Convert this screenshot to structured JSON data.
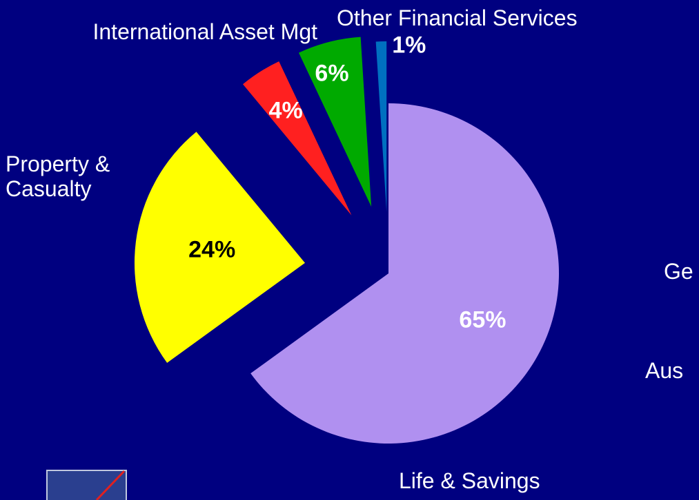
{
  "chart_data": {
    "type": "pie",
    "categories": [
      "Life & Savings",
      "Property & Casualty",
      "International Asset Mgt",
      "Other Financial Services",
      "Other Financial Services"
    ],
    "values": [
      65,
      24,
      4,
      6,
      1
    ],
    "value_labels": [
      "65%",
      "24%",
      "4%",
      "6%",
      "1%"
    ],
    "colors": [
      "#b090f0",
      "#ffff00",
      "#ff2020",
      "#00aa00",
      "#0070c0"
    ],
    "annotations": [
      "Ge",
      "Aus"
    ]
  }
}
